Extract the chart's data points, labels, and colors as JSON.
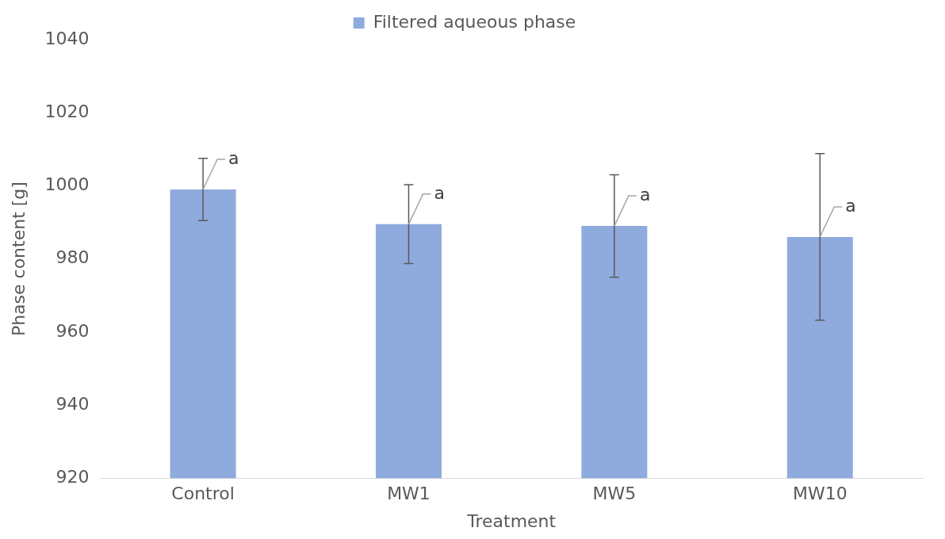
{
  "chart_data": {
    "type": "bar",
    "xlabel": "Treatment",
    "ylabel": "Phase content [g]",
    "categories": [
      "Control",
      "MW1",
      "MW5",
      "MW10"
    ],
    "series": [
      {
        "name": "Filtered aqueous phase",
        "color": "#8faadc",
        "values": [
          999,
          989.5,
          989,
          986
        ],
        "errors": [
          8.5,
          10.8,
          14,
          22.8
        ]
      }
    ],
    "ylim": [
      920,
      1040
    ],
    "yticks": [
      920,
      940,
      960,
      980,
      1000,
      1020,
      1040
    ],
    "grid": false,
    "legend": "top",
    "annotations": [
      {
        "text": "a",
        "x": "Control",
        "y": 999
      },
      {
        "text": "a",
        "x": "MW1",
        "y": 989.5
      },
      {
        "text": "a",
        "x": "MW5",
        "y": 989
      },
      {
        "text": "a",
        "x": "MW10",
        "y": 986
      }
    ]
  }
}
